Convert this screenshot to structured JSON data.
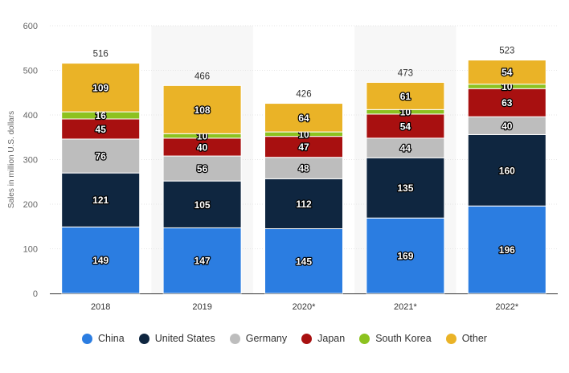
{
  "chart_data": {
    "type": "bar",
    "stacked": true,
    "title": "",
    "xlabel": "",
    "ylabel": "Sales in million U.S. dollars",
    "ylim": [
      0,
      600
    ],
    "yticks": [
      0,
      100,
      200,
      300,
      400,
      500,
      600
    ],
    "categories": [
      "2018",
      "2019",
      "2020*",
      "2021*",
      "2022*"
    ],
    "totals": [
      516,
      466,
      426,
      473,
      523
    ],
    "series": [
      {
        "name": "China",
        "color": "#2b7de1",
        "values": [
          149,
          147,
          145,
          169,
          196
        ]
      },
      {
        "name": "United States",
        "color": "#0f2640",
        "values": [
          121,
          105,
          112,
          135,
          160
        ]
      },
      {
        "name": "Germany",
        "color": "#bdbdbd",
        "values": [
          76,
          56,
          48,
          44,
          40
        ]
      },
      {
        "name": "Japan",
        "color": "#a81010",
        "values": [
          45,
          40,
          47,
          54,
          63
        ]
      },
      {
        "name": "South Korea",
        "color": "#8cc21f",
        "values": [
          16,
          10,
          10,
          10,
          10
        ]
      },
      {
        "name": "Other",
        "color": "#eab327",
        "values": [
          109,
          108,
          64,
          61,
          54
        ]
      }
    ],
    "grid": true,
    "legend_position": "bottom"
  }
}
